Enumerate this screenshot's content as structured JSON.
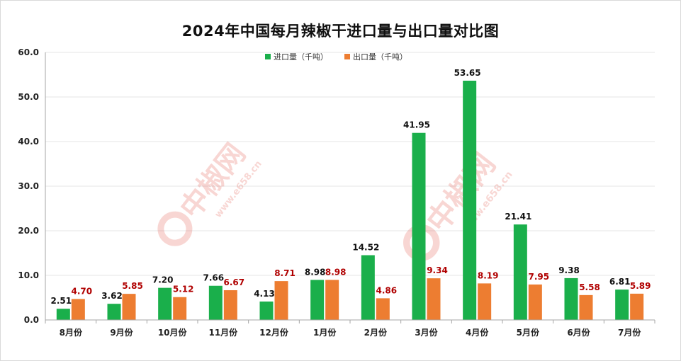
{
  "chart_data": {
    "type": "bar",
    "title": "2024年中国每月辣椒干进口量与出口量对比图",
    "categories": [
      "8月份",
      "9月份",
      "10月份",
      "11月份",
      "12月份",
      "1月份",
      "2月份",
      "3月份",
      "4月份",
      "5月份",
      "6月份",
      "7月份"
    ],
    "series": [
      {
        "name": "进口量（千吨）",
        "color": "#1aaf4b",
        "label_color": "#111111",
        "values": [
          2.51,
          3.62,
          7.2,
          7.66,
          4.13,
          8.98,
          14.52,
          41.95,
          53.65,
          21.41,
          9.38,
          6.81
        ],
        "labels": [
          "2.51",
          "3.62",
          "7.20",
          "7.66",
          "4.13",
          "8.98",
          "14.52",
          "41.95",
          "53.65",
          "21.41",
          "9.38",
          "6.81"
        ]
      },
      {
        "name": "出口量（千吨）",
        "color": "#ed7d31",
        "label_color": "#b00000",
        "values": [
          4.7,
          5.85,
          5.12,
          6.67,
          8.71,
          8.98,
          4.86,
          9.34,
          8.19,
          7.95,
          5.58,
          5.89
        ],
        "labels": [
          "4.70",
          "5.85",
          "5.12",
          "6.67",
          "8.71",
          "8.98",
          "4.86",
          "9.34",
          "8.19",
          "7.95",
          "5.58",
          "5.89"
        ]
      }
    ],
    "ylim": [
      0,
      60
    ],
    "yticks": [
      0,
      10,
      20,
      30,
      40,
      50,
      60
    ],
    "ytick_labels": [
      "0.0",
      "10.0",
      "20.0",
      "30.0",
      "40.0",
      "50.0",
      "60.0"
    ],
    "grid": true,
    "legend_position": "top-center",
    "watermark": {
      "text": "中椒网",
      "url": "www.e658.cn",
      "color": "#e04a3c"
    }
  }
}
